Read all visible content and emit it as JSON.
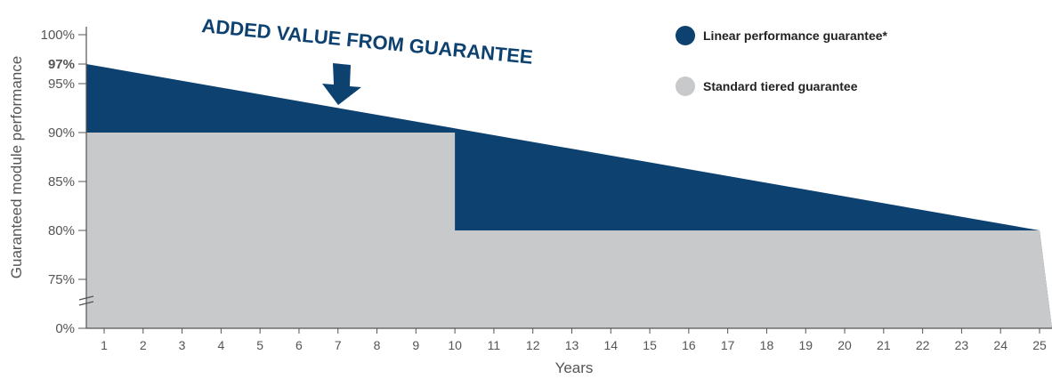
{
  "colors": {
    "linear": "#0d4170",
    "standard": "#c8c9cb",
    "axis": "#555555",
    "highlight_label": "#0d4170"
  },
  "chart_data": {
    "type": "area",
    "title": "",
    "xlabel": "Years",
    "ylabel": "Guaranteed module performance",
    "x": [
      1,
      2,
      3,
      4,
      5,
      6,
      7,
      8,
      9,
      10,
      11,
      12,
      13,
      14,
      15,
      16,
      17,
      18,
      19,
      20,
      21,
      22,
      23,
      24,
      25
    ],
    "y_tick_labels": [
      "0%",
      "75%",
      "80%",
      "85%",
      "90%",
      "95%",
      "100%"
    ],
    "y_highlight_label": "97%",
    "axis_break": true,
    "series": [
      {
        "name": "Linear performance guarantee*",
        "x": [
          0.5,
          25
        ],
        "y": [
          97,
          80
        ],
        "shape": "linear decline"
      },
      {
        "name": "Standard tiered guarantee",
        "x": [
          0.5,
          10,
          10,
          25
        ],
        "y": [
          90,
          90,
          80,
          80
        ],
        "shape": "step"
      }
    ],
    "annotation": "ADDED VALUE FROM GUARANTEE",
    "legend_position": "top-right"
  }
}
